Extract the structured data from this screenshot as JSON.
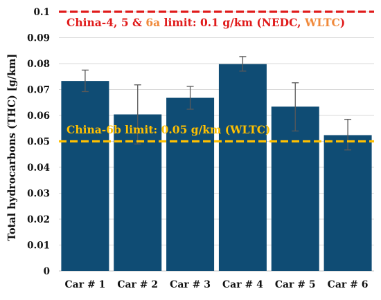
{
  "chart_data": {
    "type": "bar",
    "categories": [
      "Car # 1",
      "Car # 2",
      "Car # 3",
      "Car # 4",
      "Car # 5",
      "Car # 6"
    ],
    "values": [
      0.0733,
      0.0604,
      0.0668,
      0.0798,
      0.0634,
      0.0524
    ],
    "error_low": [
      0.0692,
      0.049,
      0.0624,
      0.0771,
      0.054,
      0.0467
    ],
    "error_high": [
      0.0775,
      0.0718,
      0.0712,
      0.0827,
      0.0726,
      0.0585
    ],
    "ylabel": "Total hydrocarbons (THC) [g/km]",
    "ylim": [
      0,
      0.1
    ],
    "yticks": [
      "0",
      "0.01",
      "0.02",
      "0.03",
      "0.04",
      "0.05",
      "0.06",
      "0.07",
      "0.08",
      "0.09",
      "0.1"
    ],
    "grid": "horizontal",
    "bar_color": "#0f4c74",
    "reference_lines": [
      {
        "value": 0.1,
        "color": "#e01b1b",
        "label_parts": [
          {
            "text": "China-4, 5 & ",
            "color": "#e01b1b"
          },
          {
            "text": "6a",
            "color": "#f08a3c"
          },
          {
            "text": " limit: 0.1 g/km (NEDC, ",
            "color": "#e01b1b"
          },
          {
            "text": "WLTC",
            "color": "#f08a3c"
          },
          {
            "text": ")",
            "color": "#e01b1b"
          }
        ]
      },
      {
        "value": 0.05,
        "color": "#ffc000",
        "label_parts": [
          {
            "text": "China-6b limit: 0.05 g/km (WLTC)",
            "color": "#ffc000"
          }
        ]
      }
    ]
  }
}
